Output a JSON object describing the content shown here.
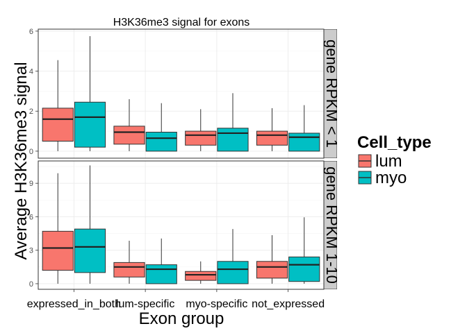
{
  "chart_data": {
    "type": "box",
    "title": "H3K36me3 signal for exons",
    "xlabel": "Exon group",
    "ylabel": "Average H3K36me3 signal",
    "categories": [
      "expressed_in_both",
      "lum-specific",
      "myo-specific",
      "not_expressed"
    ],
    "series_order": [
      "lum",
      "myo"
    ],
    "colors": {
      "lum": "#F8766D",
      "myo": "#00BFC4"
    },
    "legend": {
      "title": "Cell_type",
      "position": "right",
      "labels": [
        "lum",
        "myo"
      ]
    },
    "grid": true,
    "panels": [
      {
        "strip": "gene RPKM < 1",
        "ylim": [
          -0.35,
          6.1
        ],
        "yticks": [
          0,
          2,
          4,
          6
        ],
        "boxes": {
          "lum": [
            {
              "min": 0.0,
              "q1": 0.5,
              "median": 1.6,
              "q3": 2.15,
              "max": 4.55
            },
            {
              "min": 0.0,
              "q1": 0.35,
              "median": 0.95,
              "q3": 1.25,
              "max": 2.6
            },
            {
              "min": 0.0,
              "q1": 0.3,
              "median": 0.8,
              "q3": 1.0,
              "max": 2.1
            },
            {
              "min": 0.0,
              "q1": 0.3,
              "median": 0.8,
              "q3": 1.0,
              "max": 2.15
            }
          ],
          "myo": [
            {
              "min": 0.0,
              "q1": 0.2,
              "median": 1.7,
              "q3": 2.45,
              "max": 5.75
            },
            {
              "min": 0.0,
              "q1": 0.0,
              "median": 0.65,
              "q3": 0.95,
              "max": 2.4
            },
            {
              "min": 0.0,
              "q1": 0.0,
              "median": 0.9,
              "q3": 1.15,
              "max": 2.9
            },
            {
              "min": 0.0,
              "q1": 0.0,
              "median": 0.7,
              "q3": 0.9,
              "max": 2.3
            }
          ]
        }
      },
      {
        "strip": "gene RPKM 1-10",
        "ylim": [
          -0.5,
          11.0
        ],
        "yticks": [
          0,
          3,
          6,
          9
        ],
        "boxes": {
          "lum": [
            {
              "min": 0.0,
              "q1": 1.2,
              "median": 3.2,
              "q3": 4.7,
              "max": 9.9
            },
            {
              "min": 0.0,
              "q1": 0.6,
              "median": 1.5,
              "q3": 1.9,
              "max": 3.85
            },
            {
              "min": 0.0,
              "q1": 0.3,
              "median": 0.8,
              "q3": 1.1,
              "max": 2.0
            },
            {
              "min": 0.0,
              "q1": 0.5,
              "median": 1.5,
              "q3": 2.0,
              "max": 4.35
            }
          ],
          "myo": [
            {
              "min": 0.0,
              "q1": 1.0,
              "median": 3.3,
              "q3": 4.9,
              "max": 10.6
            },
            {
              "min": 0.0,
              "q1": 0.0,
              "median": 1.3,
              "q3": 1.7,
              "max": 4.05
            },
            {
              "min": 0.0,
              "q1": 0.0,
              "median": 1.3,
              "q3": 2.0,
              "max": 4.9
            },
            {
              "min": 0.0,
              "q1": 0.2,
              "median": 1.7,
              "q3": 2.4,
              "max": 5.95
            }
          ]
        }
      }
    ]
  }
}
